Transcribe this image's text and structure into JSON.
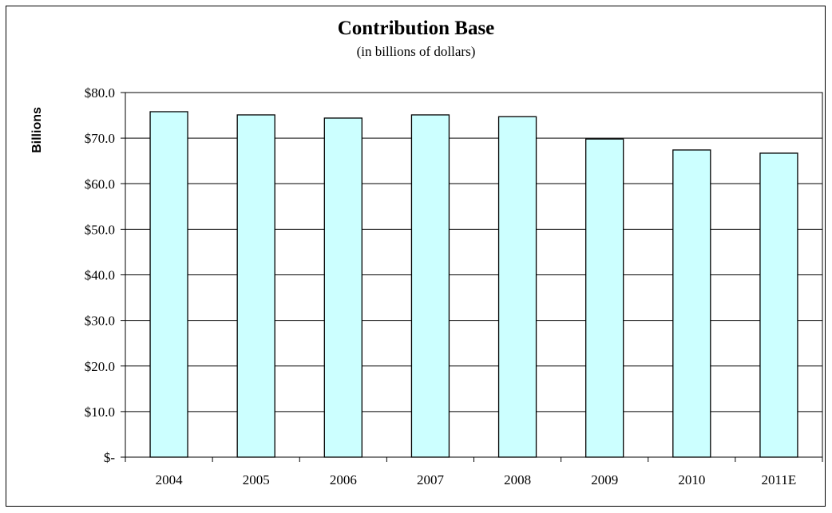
{
  "chart_data": {
    "type": "bar",
    "title": "Contribution Base",
    "subtitle": "(in billions of dollars)",
    "xlabel": "",
    "ylabel": "Billions",
    "categories": [
      "2004",
      "2005",
      "2006",
      "2007",
      "2008",
      "2009",
      "2010",
      "2011E"
    ],
    "values": [
      75.8,
      75.1,
      74.4,
      75.1,
      74.7,
      69.8,
      67.4,
      66.7
    ],
    "ylim": [
      0,
      80
    ],
    "yticks": [
      0,
      10,
      20,
      30,
      40,
      50,
      60,
      70,
      80
    ],
    "ytick_labels": [
      "$-",
      "$10.0",
      "$20.0",
      "$30.0",
      "$40.0",
      "$50.0",
      "$60.0",
      "$70.0",
      "$80.0"
    ],
    "grid": true,
    "legend": "none",
    "bar_color": "#ccffff",
    "bar_edge_color": "#000000"
  }
}
